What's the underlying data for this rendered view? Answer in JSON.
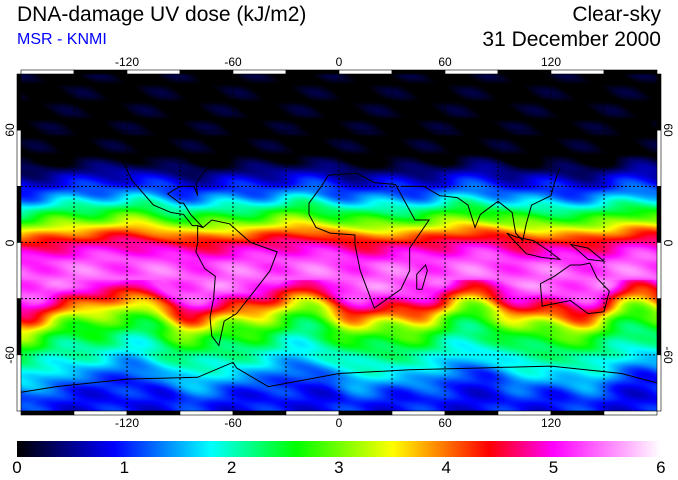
{
  "header": {
    "title": "DNA-damage UV dose (kJ/m2)",
    "source": "MSR - KNMI",
    "sky_condition": "Clear-sky",
    "date": "31 December 2000"
  },
  "map": {
    "lon_ticks": [
      "-120",
      "-60",
      "0",
      "60",
      "120"
    ],
    "lon_values": [
      -120,
      -60,
      0,
      60,
      120
    ],
    "lat_ticks": [
      "60",
      "0",
      "-60"
    ],
    "lat_values": [
      60,
      0,
      -60
    ],
    "grid_spacing_deg": 30,
    "zonal_profile": {
      "lat": [
        90,
        45,
        40,
        35,
        30,
        25,
        20,
        15,
        10,
        5,
        0,
        -5,
        -10,
        -20,
        -25,
        -30,
        -35,
        -40,
        -45,
        -50,
        -55,
        -60,
        -65,
        -70,
        -75,
        -80,
        -90
      ],
      "dose": [
        0,
        0,
        0.3,
        0.7,
        1.0,
        1.4,
        2.0,
        2.6,
        3.2,
        4.0,
        4.6,
        5.0,
        5.3,
        5.4,
        5.2,
        4.6,
        4.0,
        3.3,
        2.8,
        2.5,
        2.2,
        2.0,
        1.8,
        1.5,
        1.2,
        1.0,
        0.9
      ]
    }
  },
  "colorbar": {
    "labels": [
      "0",
      "1",
      "2",
      "3",
      "4",
      "5",
      "6"
    ],
    "min": 0,
    "max": 6,
    "stops": [
      {
        "v": 0,
        "c": "#000000"
      },
      {
        "v": 0.9,
        "c": "#0000ff"
      },
      {
        "v": 1.8,
        "c": "#00ffff"
      },
      {
        "v": 2.6,
        "c": "#00ff00"
      },
      {
        "v": 3.5,
        "c": "#ffff00"
      },
      {
        "v": 4.4,
        "c": "#ff0000"
      },
      {
        "v": 5.0,
        "c": "#ff00ff"
      },
      {
        "v": 6.0,
        "c": "#ffffff"
      }
    ]
  }
}
